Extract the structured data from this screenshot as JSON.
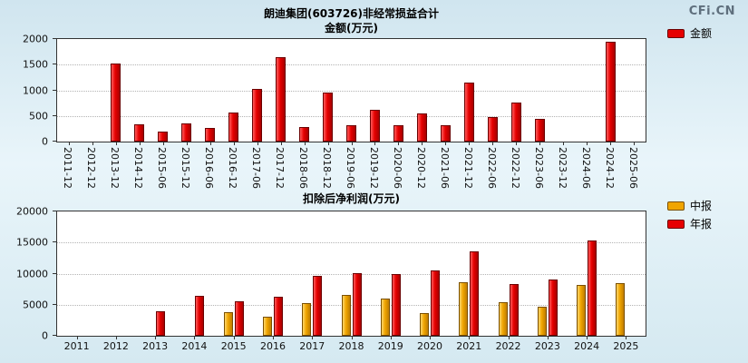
{
  "logo": "CFi.CN",
  "chart_data": [
    {
      "type": "bar",
      "title": "朗迪集团(603726)非经常损益合计",
      "subtitle": "金额(万元)",
      "categories": [
        "2011-12",
        "2012-12",
        "2013-12",
        "2014-12",
        "2015-06",
        "2015-12",
        "2016-06",
        "2016-12",
        "2017-06",
        "2017-12",
        "2018-06",
        "2018-12",
        "2019-06",
        "2019-12",
        "2020-06",
        "2020-12",
        "2021-06",
        "2021-12",
        "2022-06",
        "2022-12",
        "2023-06",
        "2023-12",
        "2024-06",
        "2024-12",
        "2025-06"
      ],
      "series": [
        {
          "name": "金额",
          "color": "#e60000",
          "color_light": "#ff5c5c",
          "color_dark": "#a80000",
          "border": "#6b0000",
          "values": [
            null,
            null,
            1520,
            330,
            190,
            360,
            260,
            570,
            1030,
            1650,
            290,
            960,
            310,
            620,
            310,
            550,
            310,
            1150,
            480,
            760,
            450,
            null,
            null,
            1950,
            null
          ]
        }
      ],
      "ylim": [
        0,
        2000
      ],
      "yticks": [
        0,
        500,
        1000,
        1500,
        2000
      ],
      "grid": "dotted-horizontal",
      "legend_position": "right-top",
      "x_label_rotation": 90
    },
    {
      "type": "bar",
      "title": "扣除后净利润(万元)",
      "subtitle": "",
      "categories": [
        "2011",
        "2012",
        "2013",
        "2014",
        "2015",
        "2016",
        "2017",
        "2018",
        "2019",
        "2020",
        "2021",
        "2022",
        "2023",
        "2024",
        "2025"
      ],
      "series": [
        {
          "name": "中报",
          "color": "#f0a500",
          "color_light": "#ffd76b",
          "color_dark": "#c07d00",
          "border": "#7a4f00",
          "values": [
            null,
            null,
            null,
            null,
            3800,
            3100,
            5200,
            6600,
            6000,
            3600,
            8600,
            5400,
            4700,
            8200,
            8400
          ]
        },
        {
          "name": "年报",
          "color": "#e60000",
          "color_light": "#ff5c5c",
          "color_dark": "#a80000",
          "border": "#6b0000",
          "values": [
            null,
            null,
            4000,
            6400,
            5600,
            6300,
            9700,
            10100,
            9900,
            10500,
            13600,
            8300,
            9000,
            15300,
            null
          ]
        }
      ],
      "ylim": [
        0,
        20000
      ],
      "yticks": [
        0,
        5000,
        10000,
        15000,
        20000
      ],
      "grid": "dotted-horizontal",
      "legend_position": "right-top",
      "x_label_rotation": 0
    }
  ]
}
